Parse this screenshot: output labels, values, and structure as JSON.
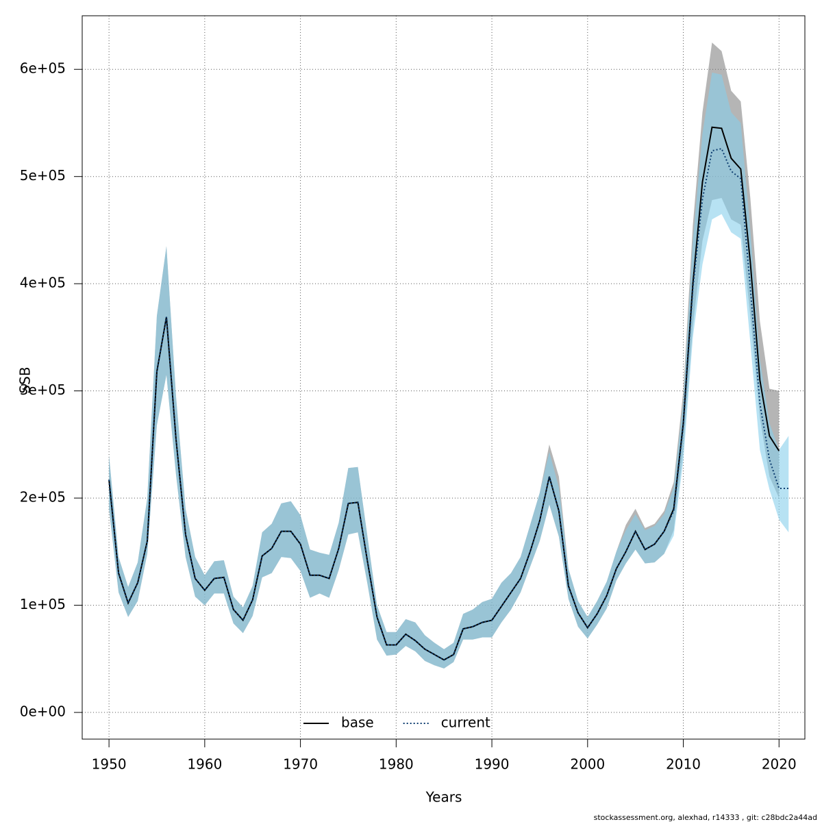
{
  "chart_data": {
    "type": "line",
    "xlabel": "Years",
    "ylabel": "SSB",
    "footer": "stockassessment.org, alexhad, r14333 , git: c28bdc2a44ad",
    "x": [
      1950,
      1951,
      1952,
      1953,
      1954,
      1955,
      1956,
      1957,
      1958,
      1959,
      1960,
      1961,
      1962,
      1963,
      1964,
      1965,
      1966,
      1967,
      1968,
      1969,
      1970,
      1971,
      1972,
      1973,
      1974,
      1975,
      1976,
      1977,
      1978,
      1979,
      1980,
      1981,
      1982,
      1983,
      1984,
      1985,
      1986,
      1987,
      1988,
      1989,
      1990,
      1991,
      1992,
      1993,
      1994,
      1995,
      1996,
      1997,
      1998,
      1999,
      2000,
      2001,
      2002,
      2003,
      2004,
      2005,
      2006,
      2007,
      2008,
      2009,
      2010,
      2011,
      2012,
      2013,
      2014,
      2015,
      2016,
      2017,
      2018,
      2019,
      2020,
      2021
    ],
    "series": [
      {
        "name": "base",
        "color": "#000000",
        "band_color": "rgba(120,120,120,0.55)",
        "dash": false,
        "values": [
          217000,
          130000,
          102000,
          121000,
          160000,
          318000,
          369000,
          255000,
          166000,
          125000,
          114000,
          125000,
          126000,
          96000,
          86000,
          105000,
          146000,
          153000,
          169000,
          169000,
          157000,
          128000,
          128000,
          125000,
          153000,
          195000,
          196000,
          141000,
          89000,
          63000,
          63000,
          73000,
          67000,
          59000,
          54000,
          49000,
          54000,
          78000,
          80000,
          84000,
          86000,
          99000,
          112000,
          125000,
          150000,
          179000,
          220000,
          188000,
          118000,
          93000,
          79000,
          92000,
          109000,
          134000,
          150000,
          169000,
          152000,
          157000,
          169000,
          190000,
          270000,
          400000,
          495000,
          546000,
          545000,
          517000,
          507000,
          420000,
          310000,
          258000,
          244000,
          null
        ],
        "lower": [
          190000,
          112000,
          89000,
          104000,
          148000,
          268000,
          315000,
          222000,
          145000,
          108000,
          100000,
          111000,
          111000,
          83000,
          74000,
          90000,
          126000,
          130000,
          145000,
          144000,
          132000,
          107000,
          111000,
          107000,
          133000,
          166000,
          168000,
          120000,
          68000,
          53000,
          54000,
          62000,
          57000,
          48000,
          44000,
          41000,
          47000,
          68000,
          68000,
          70000,
          70000,
          84000,
          96000,
          112000,
          136000,
          160000,
          194000,
          164000,
          106000,
          80000,
          69000,
          82000,
          97000,
          123000,
          139000,
          152000,
          139000,
          140000,
          148000,
          170000,
          245000,
          360000,
          440000,
          478000,
          480000,
          460000,
          455000,
          370000,
          275000,
          220000,
          200000,
          null
        ],
        "upper": [
          240000,
          145000,
          117000,
          140000,
          200000,
          370000,
          435000,
          295000,
          190000,
          145000,
          128000,
          141000,
          142000,
          108000,
          98000,
          118000,
          168000,
          176000,
          195000,
          197000,
          184000,
          152000,
          149000,
          147000,
          177000,
          228000,
          229000,
          164000,
          100000,
          75000,
          75000,
          87000,
          84000,
          72000,
          65000,
          59000,
          65000,
          92000,
          96000,
          103000,
          106000,
          121000,
          130000,
          145000,
          175000,
          205000,
          250000,
          220000,
          134000,
          104000,
          89000,
          104000,
          122000,
          150000,
          175000,
          190000,
          172000,
          176000,
          188000,
          215000,
          300000,
          455000,
          560000,
          625000,
          617000,
          580000,
          570000,
          480000,
          365000,
          302000,
          300000,
          null
        ]
      },
      {
        "name": "current",
        "color": "#0a3a6e",
        "band_color": "rgba(135,206,235,0.6)",
        "dash": true,
        "values": [
          217000,
          130000,
          102000,
          121000,
          160000,
          318000,
          369000,
          255000,
          166000,
          125000,
          114000,
          125000,
          126000,
          96000,
          86000,
          105000,
          146000,
          153000,
          169000,
          169000,
          157000,
          128000,
          128000,
          125000,
          153000,
          195000,
          196000,
          141000,
          89000,
          63000,
          63000,
          73000,
          67000,
          59000,
          54000,
          49000,
          54000,
          78000,
          80000,
          84000,
          86000,
          99000,
          112000,
          125000,
          150000,
          179000,
          220000,
          188000,
          118000,
          93000,
          79000,
          92000,
          109000,
          134000,
          150000,
          169000,
          152000,
          157000,
          169000,
          188000,
          268000,
          396000,
          479000,
          524000,
          526000,
          505000,
          498000,
          396000,
          288000,
          236000,
          209000,
          209000
        ],
        "lower": [
          190000,
          112000,
          89000,
          104000,
          148000,
          268000,
          315000,
          222000,
          145000,
          108000,
          100000,
          111000,
          111000,
          83000,
          74000,
          90000,
          126000,
          130000,
          145000,
          144000,
          132000,
          107000,
          111000,
          107000,
          133000,
          166000,
          168000,
          120000,
          68000,
          53000,
          54000,
          62000,
          57000,
          48000,
          44000,
          41000,
          47000,
          68000,
          68000,
          70000,
          70000,
          84000,
          96000,
          112000,
          136000,
          160000,
          194000,
          164000,
          106000,
          80000,
          69000,
          82000,
          97000,
          123000,
          139000,
          152000,
          139000,
          140000,
          148000,
          165000,
          235000,
          350000,
          418000,
          460000,
          465000,
          448000,
          442000,
          345000,
          245000,
          208000,
          180000,
          168000
        ],
        "upper": [
          240000,
          145000,
          117000,
          140000,
          200000,
          370000,
          435000,
          295000,
          190000,
          145000,
          128000,
          141000,
          142000,
          108000,
          98000,
          118000,
          168000,
          176000,
          195000,
          197000,
          184000,
          152000,
          149000,
          147000,
          177000,
          228000,
          229000,
          164000,
          100000,
          75000,
          75000,
          87000,
          84000,
          72000,
          65000,
          59000,
          65000,
          92000,
          96000,
          103000,
          106000,
          121000,
          130000,
          145000,
          175000,
          205000,
          243000,
          210000,
          134000,
          104000,
          89000,
          104000,
          122000,
          150000,
          170000,
          185000,
          170000,
          174000,
          185000,
          210000,
          290000,
          440000,
          540000,
          597000,
          595000,
          560000,
          550000,
          450000,
          330000,
          270000,
          245000,
          258000
        ]
      }
    ],
    "xlim": [
      1947.2,
      2022.7
    ],
    "ylim": [
      -24900,
      650000
    ],
    "xticks": [
      1950,
      1960,
      1970,
      1980,
      1990,
      2000,
      2010,
      2020
    ],
    "yticks": [
      {
        "value": 0,
        "label": "0e+00"
      },
      {
        "value": 100000,
        "label": "1e+05"
      },
      {
        "value": 200000,
        "label": "2e+05"
      },
      {
        "value": 300000,
        "label": "3e+05"
      },
      {
        "value": 400000,
        "label": "4e+05"
      },
      {
        "value": 500000,
        "label": "5e+05"
      },
      {
        "value": 600000,
        "label": "6e+05"
      }
    ],
    "grid": true,
    "legend": "bottom"
  }
}
